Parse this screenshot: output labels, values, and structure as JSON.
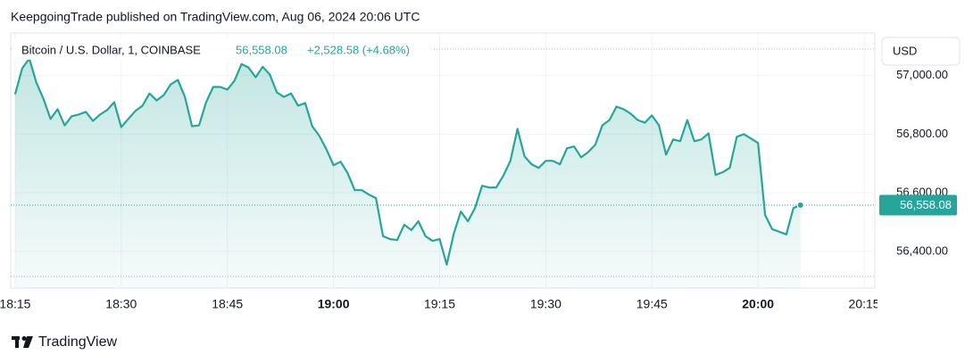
{
  "header": {
    "text": "KeepgoingTrade published on TradingView.com, Aug 06, 2024 20:06 UTC"
  },
  "chart_data": {
    "type": "area",
    "symbol": "Bitcoin / U.S. Dollar, 1, COINBASE",
    "last_price": "56,558.08",
    "change": "+2,528.58 (+4.68%)",
    "currency": "USD",
    "color": "#26a69a",
    "grid": true,
    "x": [
      "18:15",
      "18:16",
      "18:17",
      "18:18",
      "18:19",
      "18:20",
      "18:21",
      "18:22",
      "18:23",
      "18:24",
      "18:25",
      "18:26",
      "18:27",
      "18:28",
      "18:29",
      "18:30",
      "18:31",
      "18:32",
      "18:33",
      "18:34",
      "18:35",
      "18:36",
      "18:37",
      "18:38",
      "18:39",
      "18:40",
      "18:41",
      "18:42",
      "18:43",
      "18:44",
      "18:45",
      "18:46",
      "18:47",
      "18:48",
      "18:49",
      "18:50",
      "18:51",
      "18:52",
      "18:53",
      "18:54",
      "18:55",
      "18:56",
      "18:57",
      "18:58",
      "18:59",
      "19:00",
      "19:01",
      "19:02",
      "19:03",
      "19:04",
      "19:05",
      "19:06",
      "19:07",
      "19:08",
      "19:09",
      "19:10",
      "19:11",
      "19:12",
      "19:13",
      "19:14",
      "19:15",
      "19:16",
      "19:17",
      "19:18",
      "19:19",
      "19:20",
      "19:21",
      "19:22",
      "19:23",
      "19:24",
      "19:25",
      "19:26",
      "19:27",
      "19:28",
      "19:29",
      "19:30",
      "19:31",
      "19:32",
      "19:33",
      "19:34",
      "19:35",
      "19:36",
      "19:37",
      "19:38",
      "19:39",
      "19:40",
      "19:41",
      "19:42",
      "19:43",
      "19:44",
      "19:45",
      "19:46",
      "19:47",
      "19:48",
      "19:49",
      "19:50",
      "19:51",
      "19:52",
      "19:53",
      "19:54",
      "19:55",
      "19:56",
      "19:57",
      "19:58",
      "19:59",
      "20:00",
      "20:01",
      "20:02",
      "20:03",
      "20:04",
      "20:05",
      "20:06"
    ],
    "values": [
      56936,
      57024,
      57058,
      56976,
      56921,
      56852,
      56885,
      56830,
      56861,
      56867,
      56876,
      56845,
      56867,
      56882,
      56909,
      56824,
      56852,
      56879,
      56897,
      56939,
      56915,
      56933,
      56970,
      56985,
      56927,
      56827,
      56830,
      56909,
      56961,
      56961,
      56952,
      56982,
      57039,
      57027,
      56994,
      57030,
      57003,
      56942,
      56927,
      56939,
      56897,
      56906,
      56827,
      56794,
      56748,
      56694,
      56706,
      56667,
      56609,
      56609,
      56594,
      56582,
      56452,
      56442,
      56439,
      56491,
      56473,
      56503,
      56452,
      56436,
      56442,
      56355,
      56461,
      56536,
      56503,
      56548,
      56624,
      56618,
      56618,
      56658,
      56709,
      56818,
      56724,
      56697,
      56685,
      56709,
      56709,
      56697,
      56752,
      56758,
      56721,
      56739,
      56764,
      56830,
      56848,
      56894,
      56885,
      56870,
      56848,
      56839,
      56864,
      56830,
      56730,
      56782,
      56776,
      56848,
      56776,
      56782,
      56803,
      56661,
      56670,
      56685,
      56791,
      56800,
      56785,
      56770,
      56524,
      56476,
      56467,
      56458,
      56548,
      56558.08
    ],
    "xlim": [
      "18:14",
      "20:16"
    ],
    "xticks": [
      "18:15",
      "18:30",
      "18:45",
      "19:00",
      "19:15",
      "19:30",
      "19:45",
      "20:00",
      "20:15"
    ],
    "ylim": [
      56275,
      57145
    ],
    "yticks": [
      {
        "value": 56400,
        "label": "56,400.00"
      },
      {
        "value": 56600,
        "label": "56,600.00"
      },
      {
        "value": 56800,
        "label": "56,800.00"
      },
      {
        "value": 57000,
        "label": "57,000.00"
      }
    ]
  },
  "footer": {
    "brand": "TradingView"
  }
}
